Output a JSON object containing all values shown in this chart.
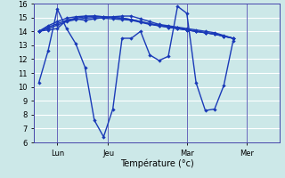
{
  "background_color": "#cce8e8",
  "grid_color": "#ffffff",
  "line_color": "#1a3ab8",
  "markersize": 2.2,
  "linewidth": 1.0,
  "ylim": [
    6,
    16
  ],
  "yticks": [
    6,
    7,
    8,
    9,
    10,
    11,
    12,
    13,
    14,
    15,
    16
  ],
  "xlabel": "Température (°c)",
  "xlabel_fontsize": 7,
  "tick_fontsize": 6,
  "day_ticks": [
    2.0,
    7.5,
    16.0,
    22.5
  ],
  "day_labels": [
    "Lun",
    "Jeu",
    "Mar",
    "Mer"
  ],
  "vlines_x": [
    2.0,
    7.5,
    16.0,
    22.5
  ],
  "xlim": [
    -0.5,
    26
  ],
  "series": [
    {
      "x": [
        0,
        1,
        2,
        3,
        4,
        5,
        6,
        7,
        8,
        9,
        10,
        11,
        12,
        13,
        14,
        15,
        16,
        17,
        18,
        19,
        20,
        21,
        22,
        23,
        24,
        25
      ],
      "y": [
        10.3,
        12.6,
        15.6,
        14.2,
        13.1,
        11.4,
        7.6,
        6.4,
        8.4,
        13.5,
        13.5,
        14.0,
        12.3,
        11.9,
        12.2,
        15.8,
        15.3,
        10.3,
        8.3,
        8.4,
        10.1,
        13.3,
        null,
        null,
        null,
        null
      ]
    },
    {
      "x": [
        0,
        1,
        2,
        3,
        4,
        5,
        6,
        7,
        8,
        9,
        10,
        11,
        12,
        13,
        14,
        15,
        16,
        17,
        18,
        19,
        20,
        21,
        22,
        23,
        24,
        25
      ],
      "y": [
        14.0,
        14.1,
        14.2,
        14.8,
        14.9,
        14.8,
        14.9,
        15.0,
        15.05,
        15.1,
        15.1,
        14.9,
        14.7,
        14.5,
        14.4,
        14.3,
        14.2,
        14.1,
        14.0,
        13.9,
        13.7,
        13.5,
        null,
        null,
        null,
        null
      ]
    },
    {
      "x": [
        0,
        1,
        2,
        3,
        4,
        5,
        6,
        7,
        8,
        9,
        10,
        11,
        12,
        13,
        14,
        15,
        16,
        17,
        18,
        19,
        20,
        21,
        22,
        23,
        24,
        25
      ],
      "y": [
        14.0,
        14.2,
        14.45,
        14.7,
        14.85,
        14.95,
        15.0,
        14.95,
        14.9,
        14.85,
        14.8,
        14.65,
        14.5,
        14.4,
        14.3,
        14.2,
        14.1,
        14.0,
        13.9,
        13.8,
        13.65,
        13.5,
        null,
        null,
        null,
        null
      ]
    },
    {
      "x": [
        0,
        1,
        2,
        3,
        4,
        5,
        6,
        7,
        8,
        9,
        10,
        11,
        12,
        13,
        14,
        15,
        16,
        17,
        18,
        19,
        20,
        21,
        22,
        23,
        24,
        25
      ],
      "y": [
        14.0,
        14.3,
        14.55,
        14.8,
        14.95,
        15.05,
        15.1,
        15.05,
        15.0,
        14.95,
        14.85,
        14.7,
        14.55,
        14.4,
        14.3,
        14.2,
        14.1,
        14.0,
        13.9,
        13.8,
        13.65,
        13.5,
        null,
        null,
        null,
        null
      ]
    },
    {
      "x": [
        0,
        1,
        2,
        3,
        4,
        5,
        6,
        7,
        8,
        9,
        10,
        11,
        12,
        13,
        14,
        15,
        16,
        17,
        18,
        19,
        20,
        21,
        22,
        23,
        24,
        25
      ],
      "y": [
        14.0,
        14.4,
        14.7,
        14.95,
        15.05,
        15.1,
        15.1,
        15.05,
        15.0,
        14.95,
        14.85,
        14.7,
        14.55,
        14.45,
        14.35,
        14.25,
        14.1,
        14.0,
        13.9,
        13.8,
        13.65,
        13.5,
        null,
        null,
        null,
        null
      ]
    }
  ]
}
